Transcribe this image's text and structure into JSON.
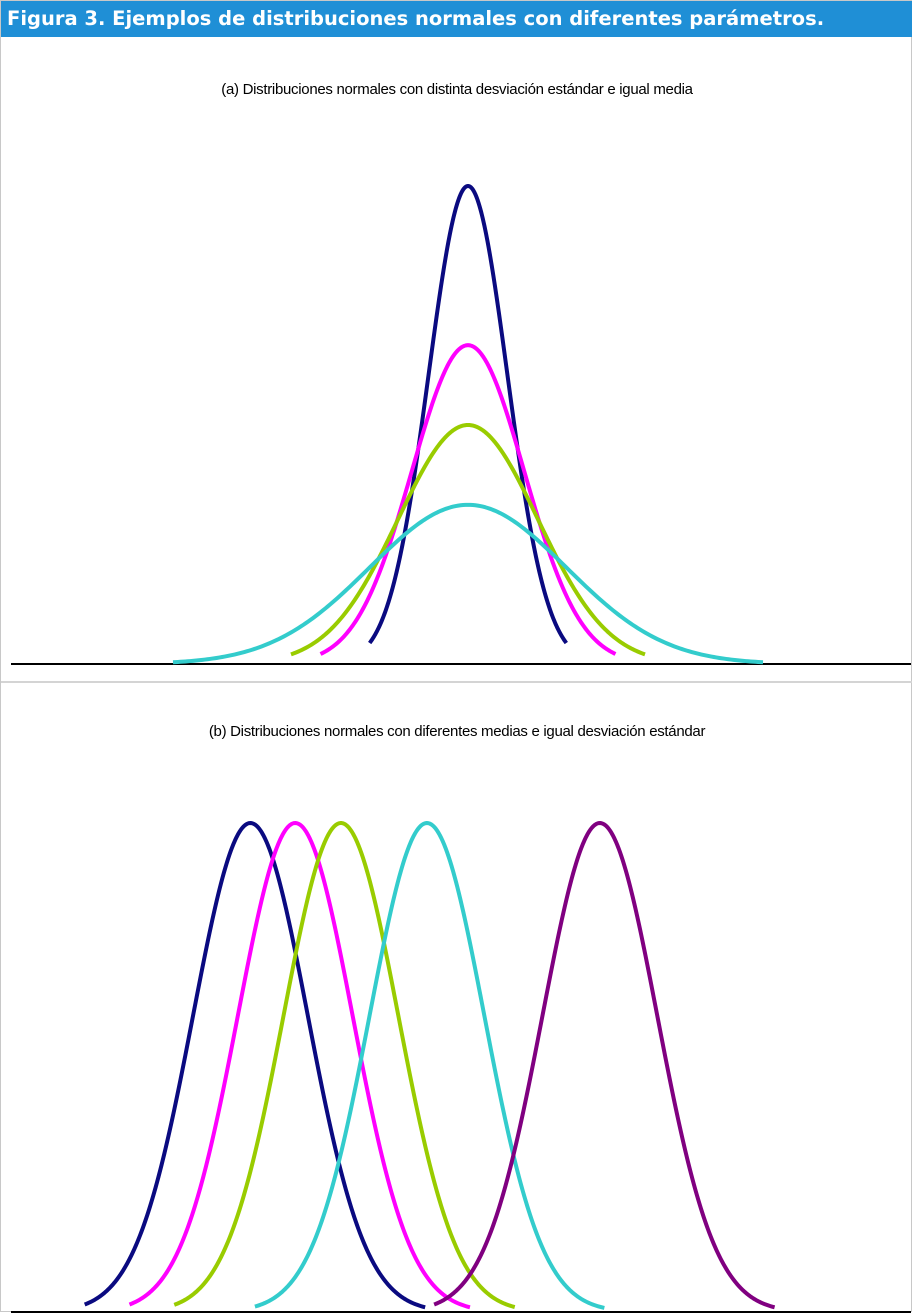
{
  "figure": {
    "title": "Figura 3.  Ejemplos de distribuciones normales con diferentes parámetros."
  },
  "chart_data": [
    {
      "type": "line",
      "title": "(a) Distribuciones normales con distinta desviación estándar e igual media",
      "xlabel": "",
      "ylabel": "",
      "axes": "baseline only, no ticks, no grid",
      "grid": false,
      "legend": "none",
      "xlim": [
        -3.0,
        3.0
      ],
      "ylim": [
        0,
        1.0
      ],
      "series": [
        {
          "color": "#0a0a80",
          "mean": 0.0,
          "sd": 0.4,
          "peak": 1.0,
          "x_range": [
            -1.0,
            1.0
          ]
        },
        {
          "color": "#ff00ff",
          "mean": 0.0,
          "sd": 0.57,
          "peak": 0.667,
          "x_range": [
            -1.5,
            1.5
          ]
        },
        {
          "color": "#99cc00",
          "mean": 0.0,
          "sd": 0.71,
          "peak": 0.5,
          "x_range": [
            -1.8,
            1.8
          ]
        },
        {
          "color": "#33cccc",
          "mean": 0.0,
          "sd": 1.0,
          "peak": 0.333,
          "x_range": [
            -3.0,
            3.0
          ]
        }
      ]
    },
    {
      "type": "line",
      "title": "(b) Distribuciones normales con diferentes medias e igual desviación estándar",
      "xlabel": "",
      "ylabel": "",
      "axes": "baseline only, no ticks, no grid",
      "grid": false,
      "legend": "none",
      "xlim": [
        0,
        100
      ],
      "ylim": [
        0,
        1.0
      ],
      "series": [
        {
          "color": "#0a0a80",
          "mean": 26.5,
          "sd": 6.4,
          "peak": 1.0,
          "x_range": [
            8,
            46
          ]
        },
        {
          "color": "#ff00ff",
          "mean": 31.5,
          "sd": 6.4,
          "peak": 1.0,
          "x_range": [
            13,
            51
          ]
        },
        {
          "color": "#99cc00",
          "mean": 36.6,
          "sd": 6.4,
          "peak": 1.0,
          "x_range": [
            18,
            56
          ]
        },
        {
          "color": "#33cccc",
          "mean": 46.2,
          "sd": 6.4,
          "peak": 1.0,
          "x_range": [
            27,
            66
          ]
        },
        {
          "color": "#800080",
          "mean": 65.5,
          "sd": 6.4,
          "peak": 1.0,
          "x_range": [
            47,
            85
          ]
        }
      ]
    }
  ]
}
